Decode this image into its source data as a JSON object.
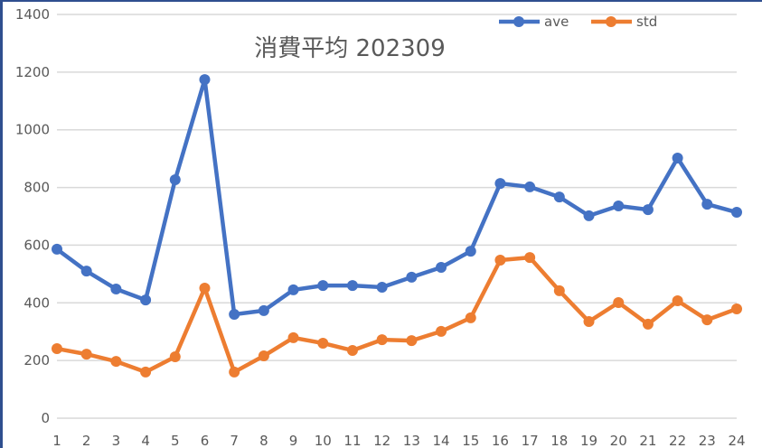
{
  "chart_data": {
    "type": "line",
    "title": "消費平均 202309",
    "xlabel": "",
    "ylabel": "",
    "ylim": [
      0,
      1400
    ],
    "yticks": [
      0,
      200,
      400,
      600,
      800,
      1000,
      1200,
      1400
    ],
    "grid": true,
    "legend_position": "top-right",
    "categories": [
      "1",
      "2",
      "3",
      "4",
      "5",
      "6",
      "7",
      "8",
      "9",
      "10",
      "11",
      "12",
      "13",
      "14",
      "15",
      "16",
      "17",
      "18",
      "19",
      "20",
      "21",
      "22",
      "23",
      "24"
    ],
    "series": [
      {
        "name": "ave",
        "color": "#4472c4",
        "values": [
          586,
          510,
          448,
          410,
          827,
          1174,
          360,
          373,
          445,
          460,
          460,
          454,
          489,
          523,
          579,
          814,
          802,
          767,
          702,
          736,
          723,
          902,
          742,
          714
        ]
      },
      {
        "name": "std",
        "color": "#ed7d31",
        "values": [
          241,
          222,
          197,
          160,
          213,
          451,
          160,
          216,
          279,
          260,
          235,
          272,
          269,
          301,
          348,
          548,
          557,
          442,
          335,
          401,
          326,
          407,
          341,
          379
        ]
      }
    ]
  }
}
